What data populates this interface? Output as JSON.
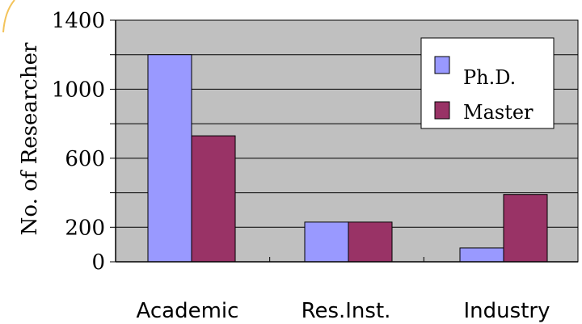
{
  "chart_data": {
    "type": "bar",
    "title": "",
    "xlabel": "",
    "ylabel": "No. of Researcher",
    "categories": [
      "Academic",
      "Res.Inst.",
      "Industry"
    ],
    "series": [
      {
        "name": "Ph.D.",
        "color": "#9999ff",
        "values": [
          1200,
          230,
          80
        ]
      },
      {
        "name": "Master",
        "color": "#993366",
        "values": [
          730,
          230,
          390
        ]
      }
    ],
    "ylim": [
      0,
      1400
    ],
    "yticks": [
      "0",
      "200",
      "600",
      "1000",
      "1400"
    ],
    "grid": true,
    "plot_background": "#c0c0c0",
    "legend_position": "top-right"
  }
}
